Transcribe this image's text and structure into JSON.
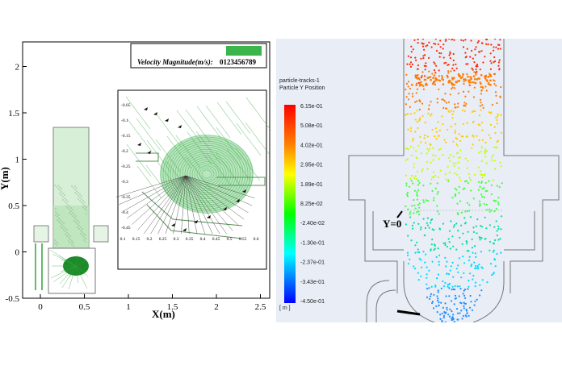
{
  "left_panel": {
    "legend_title": "Velocity Magnitude(m/s):",
    "legend_scale": "0123456789",
    "x_axis_label": "X(m)",
    "y_axis_label": "Y(m)",
    "x_ticks": [
      "0",
      "0.5",
      "1",
      "1.5",
      "2",
      "2.5"
    ],
    "y_ticks": [
      "-0.5",
      "0",
      "0.5",
      "1",
      "1.5",
      "2"
    ],
    "inset_x_ticks": [
      "0.1",
      "0.15",
      "0.2",
      "0.25",
      "0.3",
      "0.35",
      "0.4",
      "0.45",
      "0.5",
      "0.55",
      "0.6"
    ],
    "inset_y_ticks": [
      "-0.05",
      "-0.1",
      "-0.15",
      "-0.2",
      "-0.25",
      "-0.3",
      "-0.35",
      "-0.4",
      "-0.45"
    ],
    "flow_color": "#2fa33a"
  },
  "right_panel": {
    "colorbar_title_1": "particle-tracks-1",
    "colorbar_title_2": "Particle Y Position",
    "colorbar_labels": [
      "6.15e-01",
      "5.08e-01",
      "4.02e-01",
      "2.95e-01",
      "1.89e-01",
      "8.25e-02",
      "-2.40e-02",
      "-1.30e-01",
      "-2.37e-01",
      "-3.43e-01",
      "-4.50e-01"
    ],
    "colorbar_unit": "[ m ]",
    "y_zero_label": "Y=0",
    "colors": [
      "#ff0000",
      "#ff8000",
      "#ffff00",
      "#00ff00",
      "#00ffff",
      "#0000ff"
    ]
  }
}
